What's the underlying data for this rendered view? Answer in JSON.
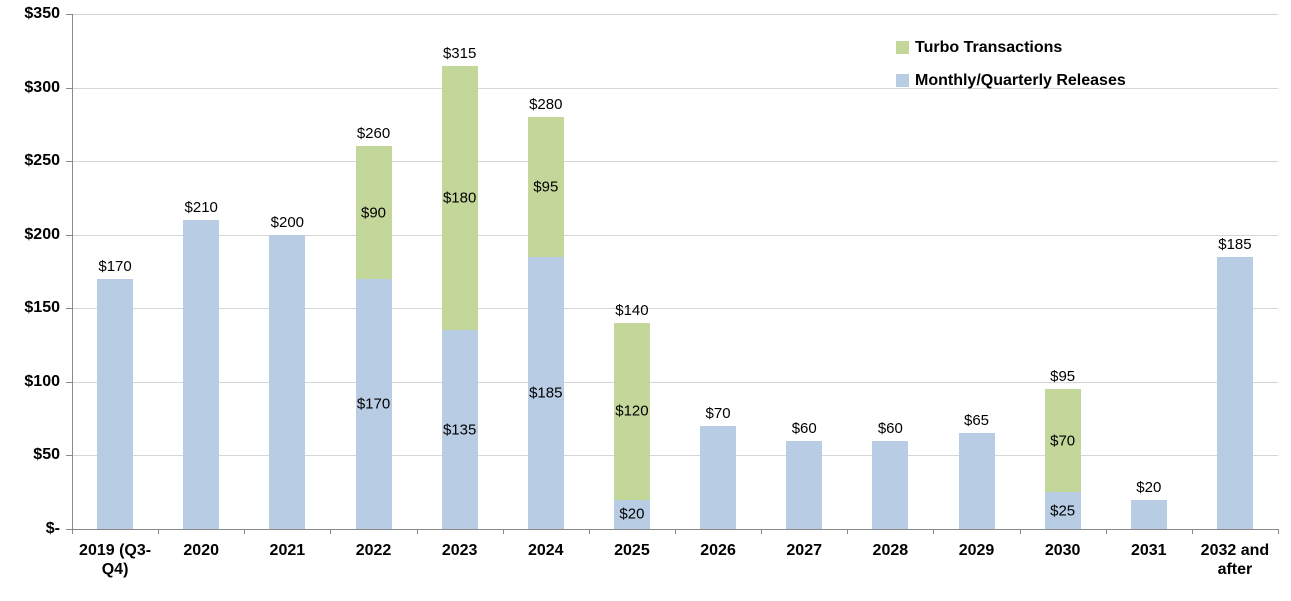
{
  "chart_data": {
    "type": "bar",
    "stacked": true,
    "title": "",
    "xlabel": "",
    "ylabel": "",
    "categories": [
      "2019 (Q3-Q4)",
      "2020",
      "2021",
      "2022",
      "2023",
      "2024",
      "2025",
      "2026",
      "2027",
      "2028",
      "2029",
      "2030",
      "2031",
      "2032 and after"
    ],
    "series": [
      {
        "name": "Monthly/Quarterly Releases",
        "color": "#B8CCE4",
        "values": [
          170,
          210,
          200,
          170,
          135,
          185,
          20,
          70,
          60,
          60,
          65,
          25,
          20,
          185
        ]
      },
      {
        "name": "Turbo Transactions",
        "color": "#C4D79B",
        "values": [
          0,
          0,
          0,
          90,
          180,
          95,
          120,
          0,
          0,
          0,
          0,
          70,
          0,
          0
        ]
      }
    ],
    "totals": [
      170,
      210,
      200,
      260,
      315,
      280,
      140,
      70,
      60,
      60,
      65,
      95,
      20,
      185
    ],
    "ylim": [
      0,
      350
    ],
    "ytick_step": 50,
    "ytick_labels": [
      "$-",
      "$50",
      "$100",
      "$150",
      "$200",
      "$250",
      "$300",
      "$350"
    ],
    "value_prefix": "$",
    "zero_tick_label": "$-",
    "grid": true,
    "legend_position": "top-right",
    "legend": [
      {
        "label": "Turbo Transactions",
        "color": "#C4D79B"
      },
      {
        "label": "Monthly/Quarterly Releases",
        "color": "#B8CCE4"
      }
    ],
    "colors": {
      "grid": "#D6D6D6",
      "axis": "#898989",
      "label_text": "#000000",
      "background": "#FFFFFF"
    }
  }
}
